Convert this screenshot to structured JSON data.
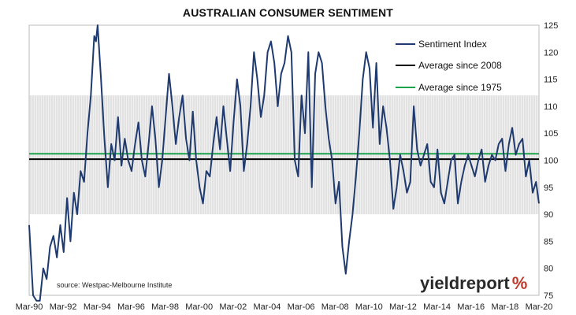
{
  "chart_data": {
    "type": "line",
    "title": "AUSTRALIAN CONSUMER SENTIMENT",
    "xlabel": "",
    "ylabel": "",
    "x_tick_labels": [
      "Mar-90",
      "Mar-92",
      "Mar-94",
      "Mar-96",
      "Mar-98",
      "Mar-00",
      "Mar-02",
      "Mar-04",
      "Mar-06",
      "Mar-08",
      "Mar-10",
      "Mar-12",
      "Mar-14",
      "Mar-16",
      "Mar-18",
      "Mar-20"
    ],
    "y_tick_labels": [
      "75",
      "80",
      "85",
      "90",
      "95",
      "100",
      "105",
      "110",
      "115",
      "120",
      "125"
    ],
    "xlim": [
      1990.17,
      2020.17
    ],
    "ylim": [
      75,
      125
    ],
    "grid": false,
    "legend_position": "top-right",
    "series": [
      {
        "name": "Sentiment Index",
        "color": "#1f3a6e",
        "x": [
          1990.17,
          1990.4,
          1990.6,
          1990.8,
          1991.0,
          1991.2,
          1991.4,
          1991.6,
          1991.8,
          1992.0,
          1992.2,
          1992.4,
          1992.6,
          1992.8,
          1993.0,
          1993.2,
          1993.4,
          1993.6,
          1993.8,
          1994.0,
          1994.1,
          1994.2,
          1994.4,
          1994.6,
          1994.8,
          1995.0,
          1995.2,
          1995.4,
          1995.6,
          1995.8,
          1996.0,
          1996.2,
          1996.4,
          1996.6,
          1996.8,
          1997.0,
          1997.2,
          1997.4,
          1997.6,
          1997.8,
          1998.0,
          1998.2,
          1998.4,
          1998.6,
          1998.8,
          1999.0,
          1999.2,
          1999.4,
          1999.6,
          1999.8,
          2000.0,
          2000.2,
          2000.4,
          2000.6,
          2000.8,
          2001.0,
          2001.2,
          2001.4,
          2001.6,
          2001.8,
          2002.0,
          2002.2,
          2002.4,
          2002.6,
          2002.8,
          2003.0,
          2003.2,
          2003.4,
          2003.6,
          2003.8,
          2004.0,
          2004.2,
          2004.4,
          2004.6,
          2004.8,
          2005.0,
          2005.2,
          2005.4,
          2005.6,
          2005.8,
          2006.0,
          2006.2,
          2006.4,
          2006.6,
          2006.8,
          2007.0,
          2007.2,
          2007.4,
          2007.6,
          2007.8,
          2008.0,
          2008.2,
          2008.4,
          2008.6,
          2008.8,
          2009.0,
          2009.2,
          2009.4,
          2009.6,
          2009.8,
          2010.0,
          2010.2,
          2010.4,
          2010.6,
          2010.8,
          2011.0,
          2011.2,
          2011.4,
          2011.6,
          2011.8,
          2012.0,
          2012.2,
          2012.4,
          2012.6,
          2012.8,
          2013.0,
          2013.2,
          2013.4,
          2013.6,
          2013.8,
          2014.0,
          2014.2,
          2014.4,
          2014.6,
          2014.8,
          2015.0,
          2015.2,
          2015.4,
          2015.6,
          2015.8,
          2016.0,
          2016.2,
          2016.4,
          2016.6,
          2016.8,
          2017.0,
          2017.2,
          2017.4,
          2017.6,
          2017.8,
          2018.0,
          2018.2,
          2018.4,
          2018.6,
          2018.8,
          2019.0,
          2019.2,
          2019.4,
          2019.6,
          2019.8,
          2020.0,
          2020.17
        ],
        "values": [
          88,
          75,
          60,
          74,
          80,
          78,
          84,
          86,
          82,
          88,
          83,
          93,
          85,
          94,
          90,
          98,
          96,
          105,
          112,
          123,
          122,
          125,
          115,
          104,
          95,
          103,
          100,
          108,
          99,
          104,
          100,
          98,
          103,
          107,
          100,
          97,
          103,
          110,
          104,
          95,
          100,
          108,
          116,
          110,
          103,
          108,
          112,
          104,
          100,
          109,
          100,
          95,
          92,
          98,
          97,
          103,
          108,
          102,
          110,
          104,
          98,
          107,
          115,
          110,
          98,
          103,
          110,
          120,
          115,
          108,
          112,
          120,
          122,
          118,
          110,
          116,
          118,
          123,
          120,
          100,
          97,
          112,
          105,
          120,
          95,
          116,
          120,
          118,
          110,
          104,
          100,
          92,
          96,
          84,
          79,
          85,
          90,
          97,
          105,
          115,
          120,
          117,
          106,
          118,
          103,
          110,
          106,
          100,
          91,
          95,
          101,
          98,
          94,
          96,
          110,
          102,
          99,
          101,
          103,
          96,
          95,
          102,
          94,
          92,
          96,
          100,
          101,
          92,
          96,
          99,
          101,
          99,
          97,
          100,
          102,
          96,
          99,
          101,
          100,
          103,
          104,
          98,
          103,
          106,
          101,
          103,
          104,
          97,
          100,
          94,
          96,
          92
        ]
      },
      {
        "name": "Average since 2008",
        "color": "#000000",
        "value": 100.2
      },
      {
        "name": "Average since 1975",
        "color": "#1aa34a",
        "value": 101.2
      }
    ],
    "shaded_band": {
      "from": 90,
      "to": 112
    },
    "source_note": "source: Westpac-Melbourne Institute",
    "brand": {
      "text": "yieldreport",
      "symbol": "%",
      "symbol_color": "#c0392b"
    }
  }
}
